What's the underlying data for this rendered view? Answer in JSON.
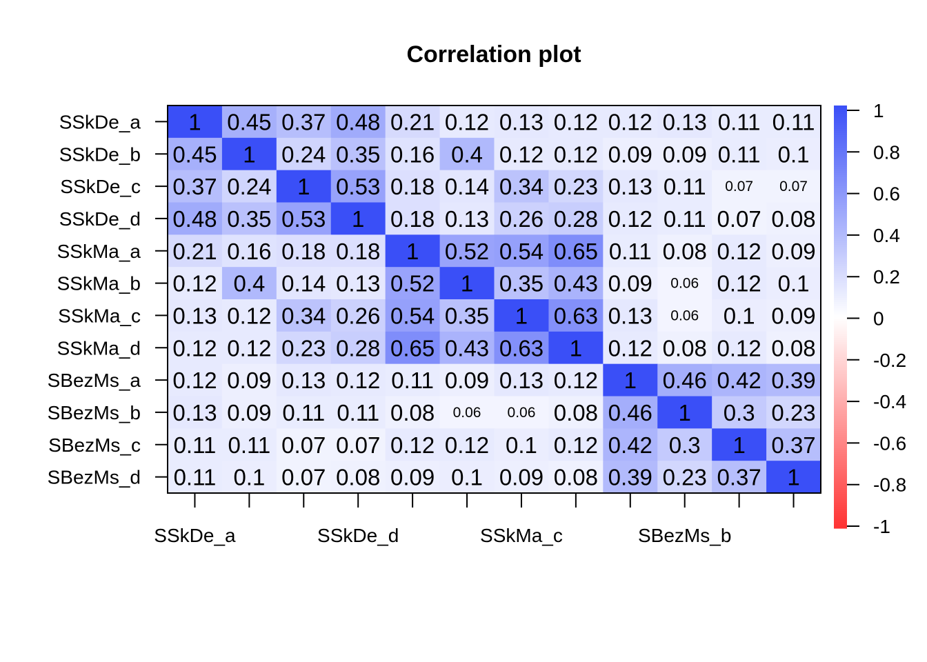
{
  "chart_data": {
    "type": "heatmap",
    "title": "Correlation plot",
    "rows": [
      "SSkDe_a",
      "SSkDe_b",
      "SSkDe_c",
      "SSkDe_d",
      "SSkMa_a",
      "SSkMa_b",
      "SSkMa_c",
      "SSkMa_d",
      "SBezMs_a",
      "SBezMs_b",
      "SBezMs_c",
      "SBezMs_d"
    ],
    "x_tick_labels": [
      "SSkDe_a",
      "SSkDe_d",
      "SSkMa_c",
      "SBezMs_b"
    ],
    "x_tick_label_indices": [
      0,
      3,
      6,
      9
    ],
    "values": [
      [
        1,
        0.45,
        0.37,
        0.48,
        0.21,
        0.12,
        0.13,
        0.12,
        0.12,
        0.13,
        0.11,
        0.11
      ],
      [
        0.45,
        1,
        0.24,
        0.35,
        0.16,
        0.4,
        0.12,
        0.12,
        0.09,
        0.09,
        0.11,
        0.1
      ],
      [
        0.37,
        0.24,
        1,
        0.53,
        0.18,
        0.14,
        0.34,
        0.23,
        0.13,
        0.11,
        0.07,
        0.07
      ],
      [
        0.48,
        0.35,
        0.53,
        1,
        0.18,
        0.13,
        0.26,
        0.28,
        0.12,
        0.11,
        0.07,
        0.08
      ],
      [
        0.21,
        0.16,
        0.18,
        0.18,
        1,
        0.52,
        0.54,
        0.65,
        0.11,
        0.08,
        0.12,
        0.09
      ],
      [
        0.12,
        0.4,
        0.14,
        0.13,
        0.52,
        1,
        0.35,
        0.43,
        0.09,
        0.06,
        0.12,
        0.1
      ],
      [
        0.13,
        0.12,
        0.34,
        0.26,
        0.54,
        0.35,
        1,
        0.63,
        0.13,
        0.06,
        0.1,
        0.09
      ],
      [
        0.12,
        0.12,
        0.23,
        0.28,
        0.65,
        0.43,
        0.63,
        1,
        0.12,
        0.08,
        0.12,
        0.08
      ],
      [
        0.12,
        0.09,
        0.13,
        0.12,
        0.11,
        0.09,
        0.13,
        0.12,
        1,
        0.46,
        0.42,
        0.39
      ],
      [
        0.13,
        0.09,
        0.11,
        0.11,
        0.08,
        0.06,
        0.06,
        0.08,
        0.46,
        1,
        0.3,
        0.23
      ],
      [
        0.11,
        0.11,
        0.07,
        0.07,
        0.12,
        0.12,
        0.1,
        0.12,
        0.42,
        0.3,
        1,
        0.37
      ],
      [
        0.11,
        0.1,
        0.07,
        0.08,
        0.09,
        0.1,
        0.09,
        0.08,
        0.39,
        0.23,
        0.37,
        1
      ]
    ],
    "small_label_cells": [
      [
        2,
        10
      ],
      [
        2,
        11
      ],
      [
        5,
        9
      ],
      [
        6,
        9
      ],
      [
        9,
        5
      ],
      [
        9,
        6
      ]
    ],
    "color_scale": {
      "min": -1,
      "max": 1,
      "low_color": "#ff3333",
      "mid_color": "#ffffff",
      "high_color": "#3a4ff7",
      "tick_labels": [
        "1",
        "0.8",
        "0.6",
        "0.4",
        "0.2",
        "0",
        "-0.2",
        "-0.4",
        "-0.6",
        "-0.8",
        "-1"
      ]
    },
    "legend_placement": "right"
  }
}
